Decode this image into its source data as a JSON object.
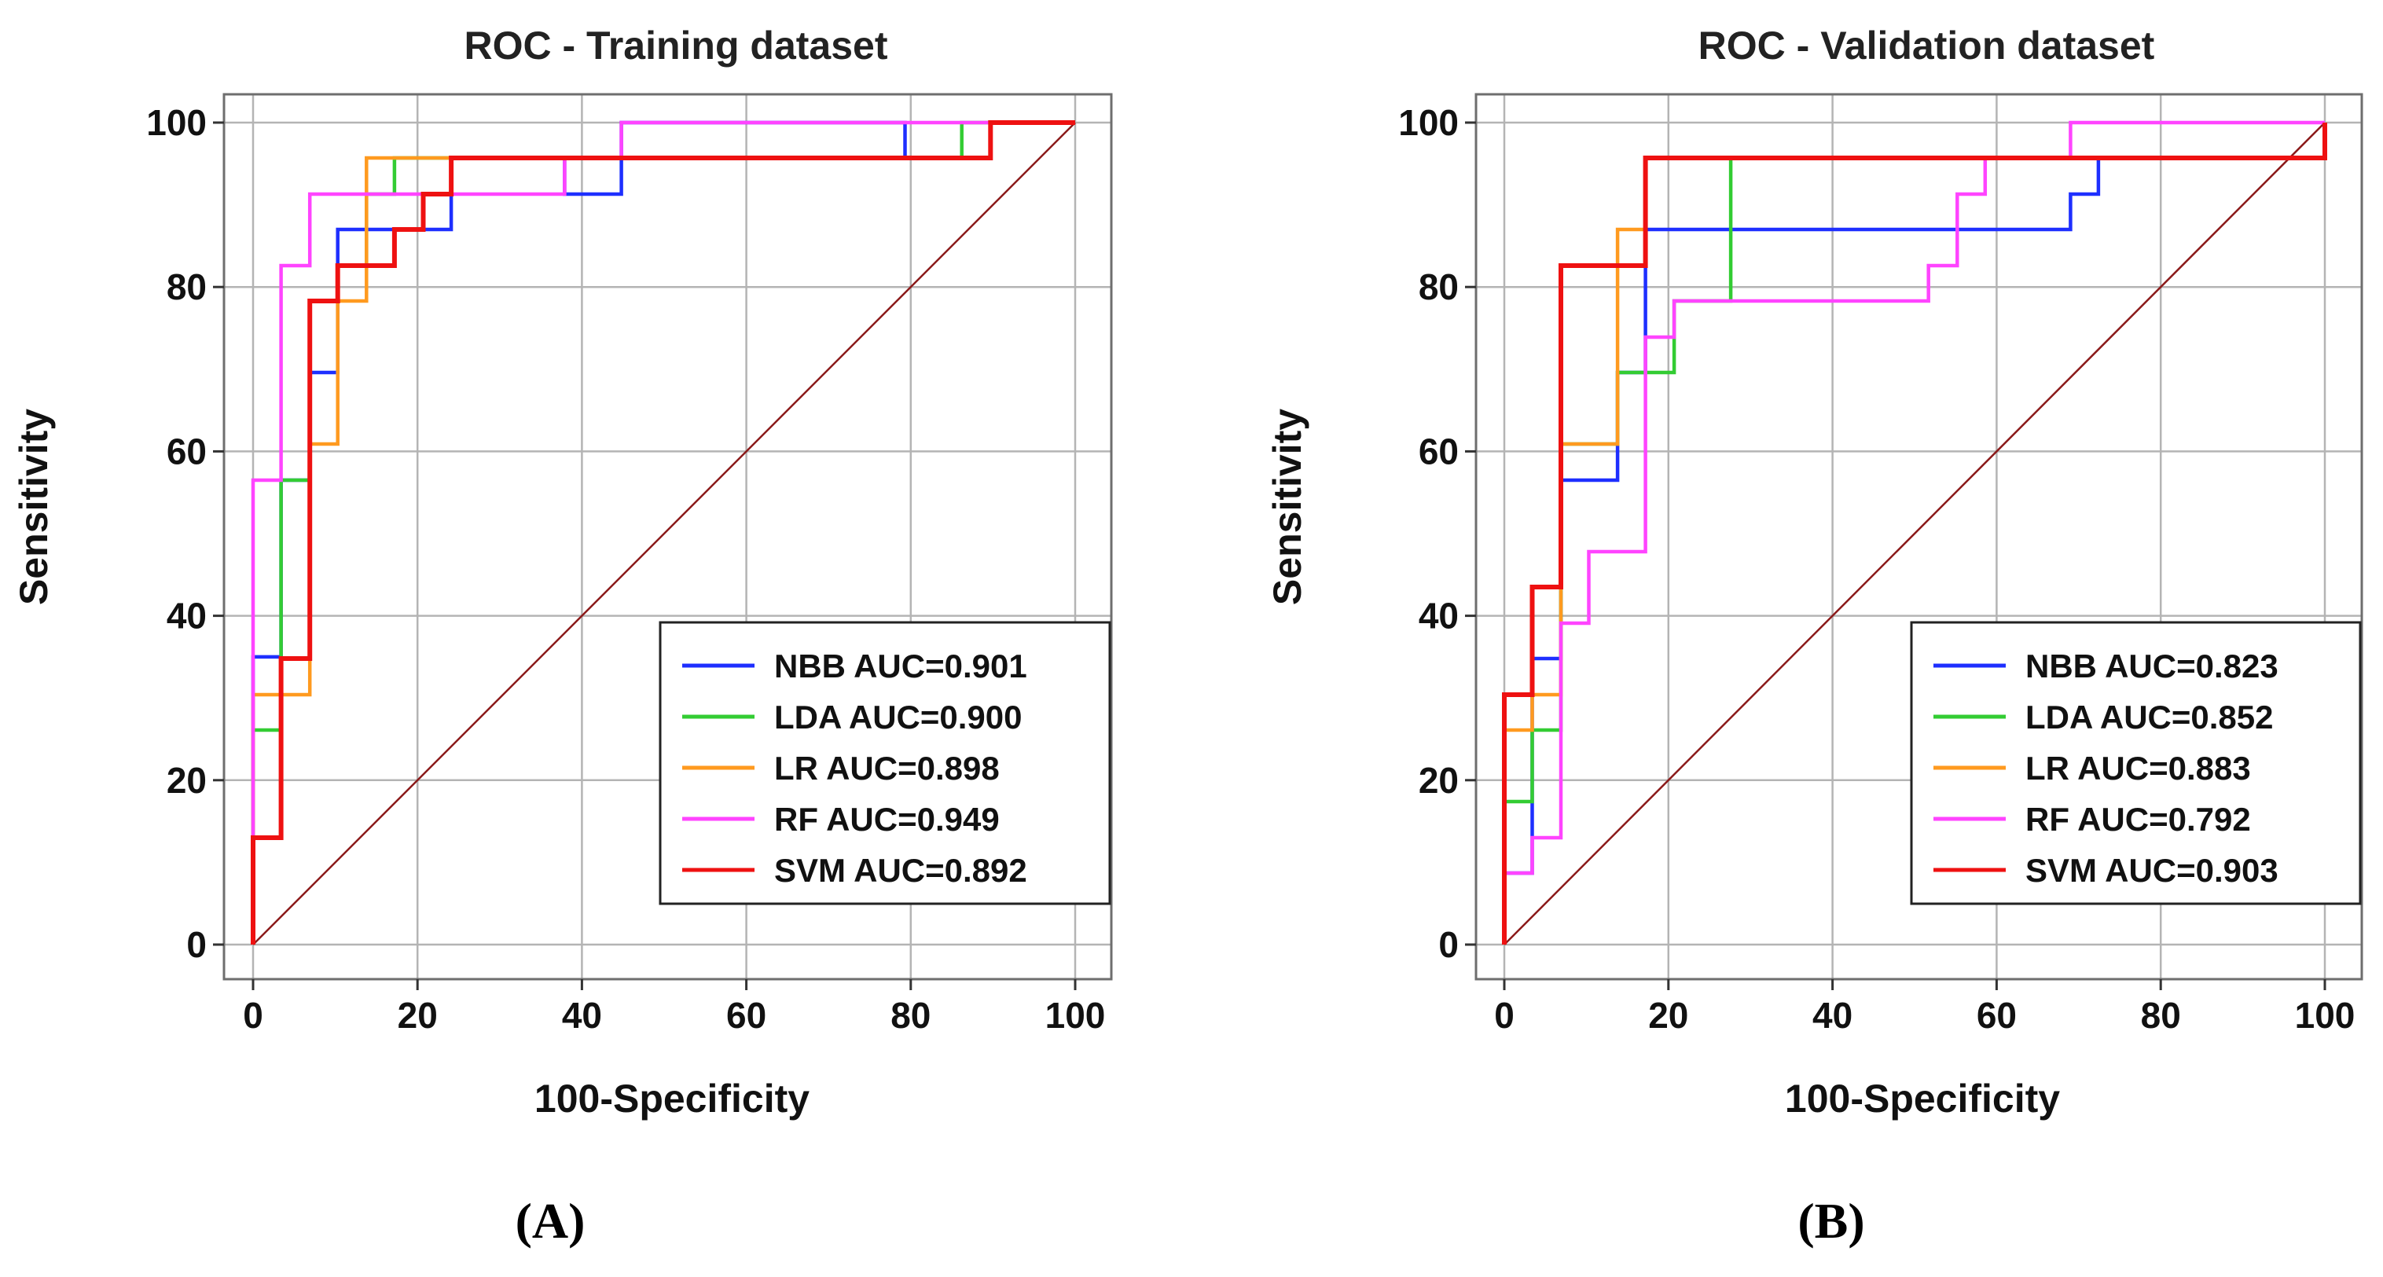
{
  "chart_data": [
    {
      "type": "line",
      "panel_label": "(A)",
      "title": "ROC - Training dataset",
      "xlabel": "100-Specificity",
      "ylabel": "Sensitivity",
      "xlim": [
        0,
        100
      ],
      "ylim": [
        0,
        100
      ],
      "xticks": [
        0,
        20,
        40,
        60,
        80,
        100
      ],
      "yticks": [
        0,
        20,
        40,
        60,
        80,
        100
      ],
      "grid": true,
      "legend_position": "bottom-right",
      "reference_line": {
        "x": [
          0,
          100
        ],
        "y": [
          0,
          100
        ],
        "color": "#8b1a1a"
      },
      "series": [
        {
          "name": "NBB AUC=0.901",
          "color": "#1e2fff",
          "points": [
            [
              0,
              0
            ],
            [
              0,
              35
            ],
            [
              3.4,
              35
            ],
            [
              3.4,
              56.5
            ],
            [
              6.9,
              56.5
            ],
            [
              6.9,
              69.6
            ],
            [
              10.3,
              69.6
            ],
            [
              10.3,
              87
            ],
            [
              17.2,
              87
            ],
            [
              17.2,
              87
            ],
            [
              24.1,
              87
            ],
            [
              24.1,
              95.7
            ],
            [
              37.9,
              95.7
            ],
            [
              37.9,
              91.3
            ],
            [
              44.8,
              91.3
            ],
            [
              44.8,
              100
            ],
            [
              79.3,
              100
            ],
            [
              79.3,
              95.7
            ],
            [
              89.7,
              95.7
            ],
            [
              89.7,
              100
            ],
            [
              100,
              100
            ]
          ]
        },
        {
          "name": "LDA AUC=0.900",
          "color": "#33cc33",
          "points": [
            [
              0,
              0
            ],
            [
              0,
              26.1
            ],
            [
              3.4,
              26.1
            ],
            [
              3.4,
              56.5
            ],
            [
              6.9,
              56.5
            ],
            [
              6.9,
              78.3
            ],
            [
              10.3,
              78.3
            ],
            [
              10.3,
              82.6
            ],
            [
              13.8,
              82.6
            ],
            [
              13.8,
              91.3
            ],
            [
              17.2,
              91.3
            ],
            [
              17.2,
              95.7
            ],
            [
              86.2,
              95.7
            ],
            [
              86.2,
              100
            ],
            [
              100,
              100
            ]
          ]
        },
        {
          "name": "LR AUC=0.898",
          "color": "#ff9a1f",
          "points": [
            [
              0,
              0
            ],
            [
              0,
              30.4
            ],
            [
              6.9,
              30.4
            ],
            [
              6.9,
              60.9
            ],
            [
              10.3,
              60.9
            ],
            [
              10.3,
              78.3
            ],
            [
              13.8,
              78.3
            ],
            [
              13.8,
              95.7
            ],
            [
              24.1,
              95.7
            ],
            [
              24.1,
              95.7
            ],
            [
              89.7,
              95.7
            ],
            [
              89.7,
              100
            ],
            [
              100,
              100
            ]
          ]
        },
        {
          "name": "RF AUC=0.949",
          "color": "#ff44ff",
          "points": [
            [
              0,
              0
            ],
            [
              0,
              56.5
            ],
            [
              3.4,
              56.5
            ],
            [
              3.4,
              82.6
            ],
            [
              6.9,
              82.6
            ],
            [
              6.9,
              91.3
            ],
            [
              37.9,
              91.3
            ],
            [
              37.9,
              95.7
            ],
            [
              44.8,
              95.7
            ],
            [
              44.8,
              100
            ],
            [
              100,
              100
            ]
          ]
        },
        {
          "name": "SVM AUC=0.892",
          "color": "#ee1111",
          "points": [
            [
              0,
              0
            ],
            [
              0,
              13
            ],
            [
              3.4,
              13
            ],
            [
              3.4,
              34.8
            ],
            [
              6.9,
              34.8
            ],
            [
              6.9,
              78.3
            ],
            [
              10.3,
              78.3
            ],
            [
              10.3,
              82.6
            ],
            [
              17.2,
              82.6
            ],
            [
              17.2,
              87
            ],
            [
              20.7,
              87
            ],
            [
              20.7,
              91.3
            ],
            [
              24.1,
              91.3
            ],
            [
              24.1,
              95.7
            ],
            [
              89.7,
              95.7
            ],
            [
              89.7,
              100
            ],
            [
              100,
              100
            ]
          ]
        }
      ]
    },
    {
      "type": "line",
      "panel_label": "(B)",
      "title": "ROC - Validation dataset",
      "xlabel": "100-Specificity",
      "ylabel": "Sensitivity",
      "xlim": [
        0,
        100
      ],
      "ylim": [
        0,
        100
      ],
      "xticks": [
        0,
        20,
        40,
        60,
        80,
        100
      ],
      "yticks": [
        0,
        20,
        40,
        60,
        80,
        100
      ],
      "grid": true,
      "legend_position": "bottom-right",
      "reference_line": {
        "x": [
          0,
          100
        ],
        "y": [
          0,
          100
        ],
        "color": "#8b1a1a"
      },
      "series": [
        {
          "name": "NBB AUC=0.823",
          "color": "#1e2fff",
          "points": [
            [
              0,
              0
            ],
            [
              0,
              8.7
            ],
            [
              3.4,
              8.7
            ],
            [
              3.4,
              17.4
            ],
            [
              3.4,
              34.8
            ],
            [
              6.9,
              34.8
            ],
            [
              6.9,
              56.5
            ],
            [
              13.8,
              56.5
            ],
            [
              13.8,
              69.6
            ],
            [
              17.2,
              69.6
            ],
            [
              17.2,
              87
            ],
            [
              69,
              87
            ],
            [
              69,
              91.3
            ],
            [
              72.4,
              91.3
            ],
            [
              72.4,
              95.7
            ],
            [
              100,
              95.7
            ],
            [
              100,
              100
            ]
          ]
        },
        {
          "name": "LDA AUC=0.852",
          "color": "#33cc33",
          "points": [
            [
              0,
              0
            ],
            [
              0,
              17.4
            ],
            [
              3.4,
              17.4
            ],
            [
              3.4,
              26.1
            ],
            [
              6.9,
              26.1
            ],
            [
              6.9,
              60.9
            ],
            [
              13.8,
              60.9
            ],
            [
              13.8,
              69.6
            ],
            [
              20.7,
              69.6
            ],
            [
              20.7,
              78.3
            ],
            [
              27.6,
              78.3
            ],
            [
              27.6,
              95.7
            ],
            [
              100,
              95.7
            ],
            [
              100,
              100
            ]
          ]
        },
        {
          "name": "LR AUC=0.883",
          "color": "#ff9a1f",
          "points": [
            [
              0,
              0
            ],
            [
              0,
              26.1
            ],
            [
              3.4,
              26.1
            ],
            [
              3.4,
              30.4
            ],
            [
              6.9,
              30.4
            ],
            [
              6.9,
              60.9
            ],
            [
              13.8,
              60.9
            ],
            [
              13.8,
              87
            ],
            [
              17.2,
              87
            ],
            [
              17.2,
              95.7
            ],
            [
              100,
              95.7
            ],
            [
              100,
              100
            ]
          ]
        },
        {
          "name": "RF AUC=0.792",
          "color": "#ff44ff",
          "points": [
            [
              0,
              0
            ],
            [
              0,
              8.7
            ],
            [
              3.4,
              8.7
            ],
            [
              3.4,
              13
            ],
            [
              6.9,
              13
            ],
            [
              6.9,
              39.1
            ],
            [
              10.3,
              39.1
            ],
            [
              10.3,
              47.8
            ],
            [
              17.2,
              47.8
            ],
            [
              17.2,
              73.9
            ],
            [
              20.7,
              73.9
            ],
            [
              20.7,
              78.3
            ],
            [
              51.7,
              78.3
            ],
            [
              51.7,
              82.6
            ],
            [
              55.2,
              82.6
            ],
            [
              55.2,
              91.3
            ],
            [
              58.6,
              91.3
            ],
            [
              58.6,
              95.7
            ],
            [
              69,
              95.7
            ],
            [
              69,
              100
            ],
            [
              100,
              100
            ]
          ]
        },
        {
          "name": "SVM AUC=0.903",
          "color": "#ee1111",
          "points": [
            [
              0,
              0
            ],
            [
              0,
              30.4
            ],
            [
              3.4,
              30.4
            ],
            [
              3.4,
              43.5
            ],
            [
              6.9,
              43.5
            ],
            [
              6.9,
              82.6
            ],
            [
              17.2,
              82.6
            ],
            [
              17.2,
              95.7
            ],
            [
              100,
              95.7
            ],
            [
              100,
              100
            ]
          ]
        }
      ]
    }
  ]
}
